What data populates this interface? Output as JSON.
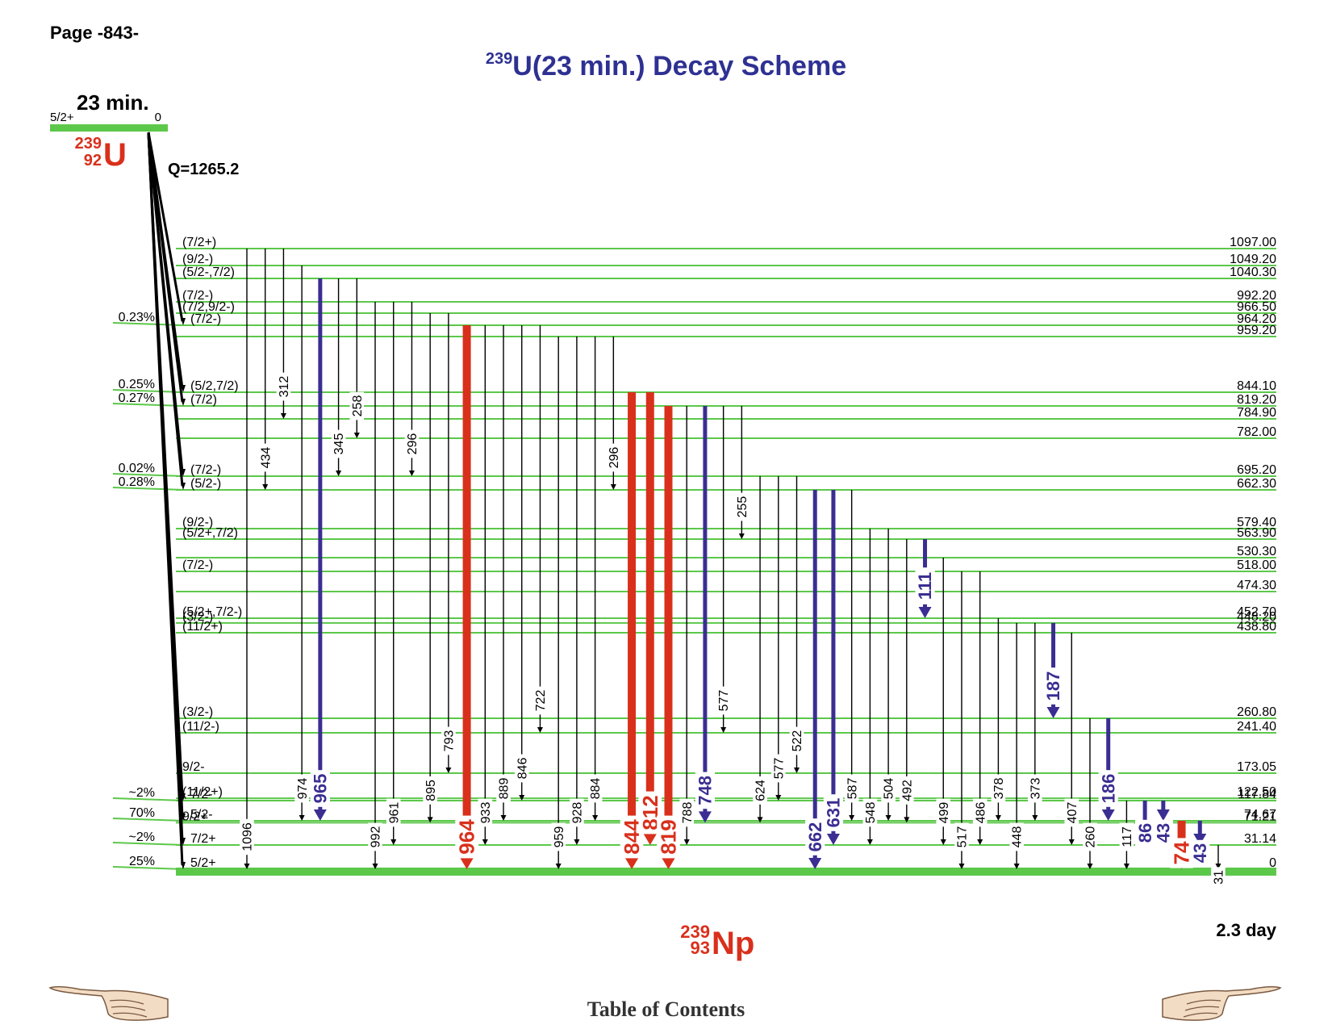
{
  "page": {
    "number": "Page -843-"
  },
  "title": {
    "sup": "239",
    "main": "U(23 min.) Decay Scheme"
  },
  "parent": {
    "halflife": "23 min.",
    "spin": "5/2+",
    "energy": "0",
    "mass": "239",
    "z": "92",
    "symbol": "U",
    "q": "Q=1265.2"
  },
  "daughter": {
    "mass": "239",
    "z": "93",
    "symbol": "Np",
    "halflife": "2.3 day"
  },
  "footer": {
    "toc": "Table of Contents"
  },
  "colors": {
    "level": "#5cc84a",
    "strong": "#d9301c",
    "medium": "#3a2e92",
    "weak": "#000000",
    "title": "#2e3192"
  },
  "levels": [
    {
      "e": 1097.0,
      "label": "1097.00",
      "spin": "(7/2+)",
      "bf": ""
    },
    {
      "e": 1049.2,
      "label": "1049.20",
      "spin": "(9/2-)",
      "bf": ""
    },
    {
      "e": 1040.3,
      "label": "1040.30",
      "spin": "(5/2-,7/2)",
      "bf": ""
    },
    {
      "e": 992.2,
      "label": "992.20",
      "spin": "(7/2-)",
      "bf": ""
    },
    {
      "e": 966.5,
      "label": "966.50",
      "spin": "(7/2,9/2-)",
      "bf": ""
    },
    {
      "e": 964.2,
      "label": "964.20",
      "spin": "(7/2-)",
      "bf": "0.23%"
    },
    {
      "e": 959.2,
      "label": "959.20",
      "spin": "",
      "bf": ""
    },
    {
      "e": 844.1,
      "label": "844.10",
      "spin": "(5/2,7/2)",
      "bf": "0.25%"
    },
    {
      "e": 819.2,
      "label": "819.20",
      "spin": "(7/2)",
      "bf": "0.27%"
    },
    {
      "e": 784.9,
      "label": "784.90",
      "spin": "",
      "bf": ""
    },
    {
      "e": 782.0,
      "label": "782.00",
      "spin": "",
      "bf": ""
    },
    {
      "e": 695.2,
      "label": "695.20",
      "spin": "(7/2-)",
      "bf": "0.02%"
    },
    {
      "e": 662.3,
      "label": "662.30",
      "spin": "(5/2-)",
      "bf": "0.28%"
    },
    {
      "e": 579.4,
      "label": "579.40",
      "spin": "(9/2-)",
      "bf": ""
    },
    {
      "e": 563.9,
      "label": "563.90",
      "spin": "(5/2+,7/2)",
      "bf": ""
    },
    {
      "e": 530.3,
      "label": "530.30",
      "spin": "",
      "bf": ""
    },
    {
      "e": 518.0,
      "label": "518.00",
      "spin": "(7/2-)",
      "bf": ""
    },
    {
      "e": 474.3,
      "label": "474.30",
      "spin": "",
      "bf": ""
    },
    {
      "e": 452.7,
      "label": "452.70",
      "spin": "(5/2+,7/2-)",
      "bf": ""
    },
    {
      "e": 448.2,
      "label": "448.20",
      "spin": "(3/2-)",
      "bf": ""
    },
    {
      "e": 438.8,
      "label": "438.80",
      "spin": "(11/2+)",
      "bf": ""
    },
    {
      "e": 260.8,
      "label": "260.80",
      "spin": "(3/2-)",
      "bf": ""
    },
    {
      "e": 241.4,
      "label": "241.40",
      "spin": "(11/2-)",
      "bf": ""
    },
    {
      "e": 173.05,
      "label": "173.05",
      "spin": "9/2-",
      "bf": ""
    },
    {
      "e": 122.5,
      "label": "122.50",
      "spin": "(11/2+)",
      "bf": ""
    },
    {
      "e": 117.84,
      "label": "117.84",
      "spin": "7/2-",
      "bf": "~2%"
    },
    {
      "e": 74.67,
      "label": "74.67",
      "spin": "5/2-",
      "bf": "70%"
    },
    {
      "e": 71.21,
      "label": "71.21",
      "spin": "9/2+",
      "bf": ""
    },
    {
      "e": 31.14,
      "label": "31.14",
      "spin": "7/2+",
      "bf": "~2%"
    },
    {
      "e": 0,
      "label": "0",
      "spin": "5/2+",
      "bf": "25%"
    }
  ],
  "gammas": [
    {
      "from": 1097.0,
      "to": 0,
      "label": "1096",
      "s": "w"
    },
    {
      "from": 1097.0,
      "to": 662.3,
      "label": "434",
      "s": "w"
    },
    {
      "from": 1097.0,
      "to": 784.9,
      "label": "312",
      "s": "w"
    },
    {
      "from": 1049.2,
      "to": 74.67,
      "label": "974",
      "s": "w"
    },
    {
      "from": 1040.3,
      "to": 74.67,
      "label": "965",
      "s": "m"
    },
    {
      "from": 1040.3,
      "to": 695.2,
      "label": "345",
      "s": "w"
    },
    {
      "from": 1040.3,
      "to": 782.0,
      "label": "258",
      "s": "w"
    },
    {
      "from": 992.2,
      "to": 0,
      "label": "992",
      "s": "w"
    },
    {
      "from": 992.2,
      "to": 31.14,
      "label": "961",
      "s": "w"
    },
    {
      "from": 992.2,
      "to": 695.2,
      "label": "296",
      "s": "w"
    },
    {
      "from": 966.5,
      "to": 71.21,
      "label": "895",
      "s": "w"
    },
    {
      "from": 966.5,
      "to": 173.05,
      "label": "793",
      "s": "w"
    },
    {
      "from": 964.2,
      "to": 0,
      "label": "964",
      "s": "s"
    },
    {
      "from": 964.2,
      "to": 31.14,
      "label": "933",
      "s": "w"
    },
    {
      "from": 964.2,
      "to": 74.67,
      "label": "889",
      "s": "w"
    },
    {
      "from": 964.2,
      "to": 117.84,
      "label": "846",
      "s": "w"
    },
    {
      "from": 964.2,
      "to": 241.4,
      "label": "722",
      "s": "w"
    },
    {
      "from": 959.2,
      "to": 0,
      "label": "959",
      "s": "w"
    },
    {
      "from": 959.2,
      "to": 31.14,
      "label": "928",
      "s": "w"
    },
    {
      "from": 959.2,
      "to": 74.67,
      "label": "884",
      "s": "w"
    },
    {
      "from": 959.2,
      "to": 662.3,
      "label": "296",
      "s": "w"
    },
    {
      "from": 844.1,
      "to": 0,
      "label": "844",
      "s": "s"
    },
    {
      "from": 844.1,
      "to": 31.14,
      "label": "812",
      "s": "s"
    },
    {
      "from": 819.2,
      "to": 0,
      "label": "819",
      "s": "s"
    },
    {
      "from": 819.2,
      "to": 31.14,
      "label": "788",
      "s": "w"
    },
    {
      "from": 819.2,
      "to": 71.21,
      "label": "748",
      "s": "m"
    },
    {
      "from": 819.2,
      "to": 241.4,
      "label": "577",
      "s": "w"
    },
    {
      "from": 819.2,
      "to": 563.9,
      "label": "255",
      "s": "w"
    },
    {
      "from": 695.2,
      "to": 71.21,
      "label": "624",
      "s": "w"
    },
    {
      "from": 695.2,
      "to": 117.84,
      "label": "577",
      "s": "w"
    },
    {
      "from": 695.2,
      "to": 173.05,
      "label": "522",
      "s": "w"
    },
    {
      "from": 662.3,
      "to": 0,
      "label": "662",
      "s": "m"
    },
    {
      "from": 662.3,
      "to": 31.14,
      "label": "631",
      "s": "m"
    },
    {
      "from": 662.3,
      "to": 74.67,
      "label": "587",
      "s": "w"
    },
    {
      "from": 579.4,
      "to": 31.14,
      "label": "548",
      "s": "w"
    },
    {
      "from": 579.4,
      "to": 74.67,
      "label": "504",
      "s": "w"
    },
    {
      "from": 563.9,
      "to": 71.21,
      "label": "492",
      "s": "w"
    },
    {
      "from": 563.9,
      "to": 452.7,
      "label": "111",
      "s": "m"
    },
    {
      "from": 530.3,
      "to": 31.14,
      "label": "499",
      "s": "w"
    },
    {
      "from": 518.0,
      "to": 0,
      "label": "517",
      "s": "w"
    },
    {
      "from": 518.0,
      "to": 31.14,
      "label": "486",
      "s": "w"
    },
    {
      "from": 452.7,
      "to": 74.67,
      "label": "378",
      "s": "w"
    },
    {
      "from": 448.2,
      "to": 0,
      "label": "448",
      "s": "w"
    },
    {
      "from": 448.2,
      "to": 74.67,
      "label": "373",
      "s": "w"
    },
    {
      "from": 448.2,
      "to": 260.8,
      "label": "187",
      "s": "m"
    },
    {
      "from": 438.8,
      "to": 31.14,
      "label": "407",
      "s": "w"
    },
    {
      "from": 260.8,
      "to": 0,
      "label": "260",
      "s": "w"
    },
    {
      "from": 260.8,
      "to": 74.67,
      "label": "186",
      "s": "m"
    },
    {
      "from": 117.84,
      "to": 0,
      "label": "117",
      "s": "w"
    },
    {
      "from": 117.84,
      "to": 31.14,
      "label": "86",
      "s": "m"
    },
    {
      "from": 117.84,
      "to": 74.67,
      "label": "43",
      "s": "m"
    },
    {
      "from": 74.67,
      "to": 0,
      "label": "74",
      "s": "s"
    },
    {
      "from": 74.67,
      "to": 31.14,
      "label": "43",
      "s": "m"
    },
    {
      "from": 31.14,
      "to": 0,
      "label": "31",
      "s": "w"
    }
  ]
}
